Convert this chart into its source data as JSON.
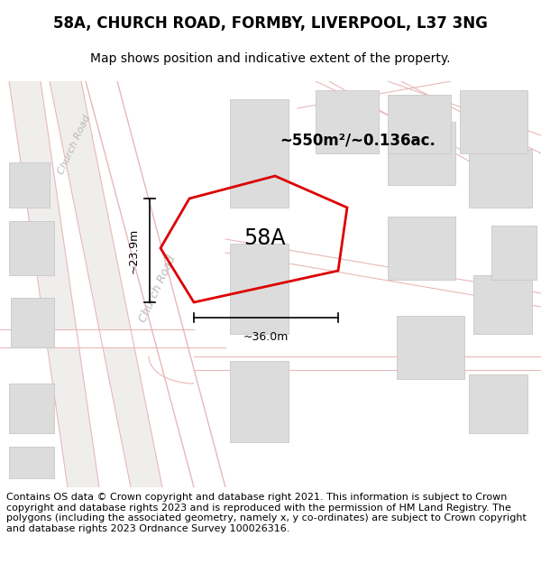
{
  "title": "58A, CHURCH ROAD, FORMBY, LIVERPOOL, L37 3NG",
  "subtitle": "Map shows position and indicative extent of the property.",
  "footer": "Contains OS data © Crown copyright and database right 2021. This information is subject to Crown copyright and database rights 2023 and is reproduced with the permission of HM Land Registry. The polygons (including the associated geometry, namely x, y co-ordinates) are subject to Crown copyright and database rights 2023 Ordnance Survey 100026316.",
  "area_label": "~550m²/~0.136ac.",
  "label_58a": "58A",
  "dim_height": "~23.9m",
  "dim_width": "~36.0m",
  "map_bg": "#f7f6f4",
  "road_fill": "#ffffff",
  "road_edge": "#e8b8b8",
  "building_color": "#dcdcdc",
  "building_edge": "#c8c8c8",
  "property_color": "#dd0000",
  "road_label_color": "#b8b8b8",
  "title_fontsize": 12,
  "subtitle_fontsize": 10,
  "footer_fontsize": 8.0
}
